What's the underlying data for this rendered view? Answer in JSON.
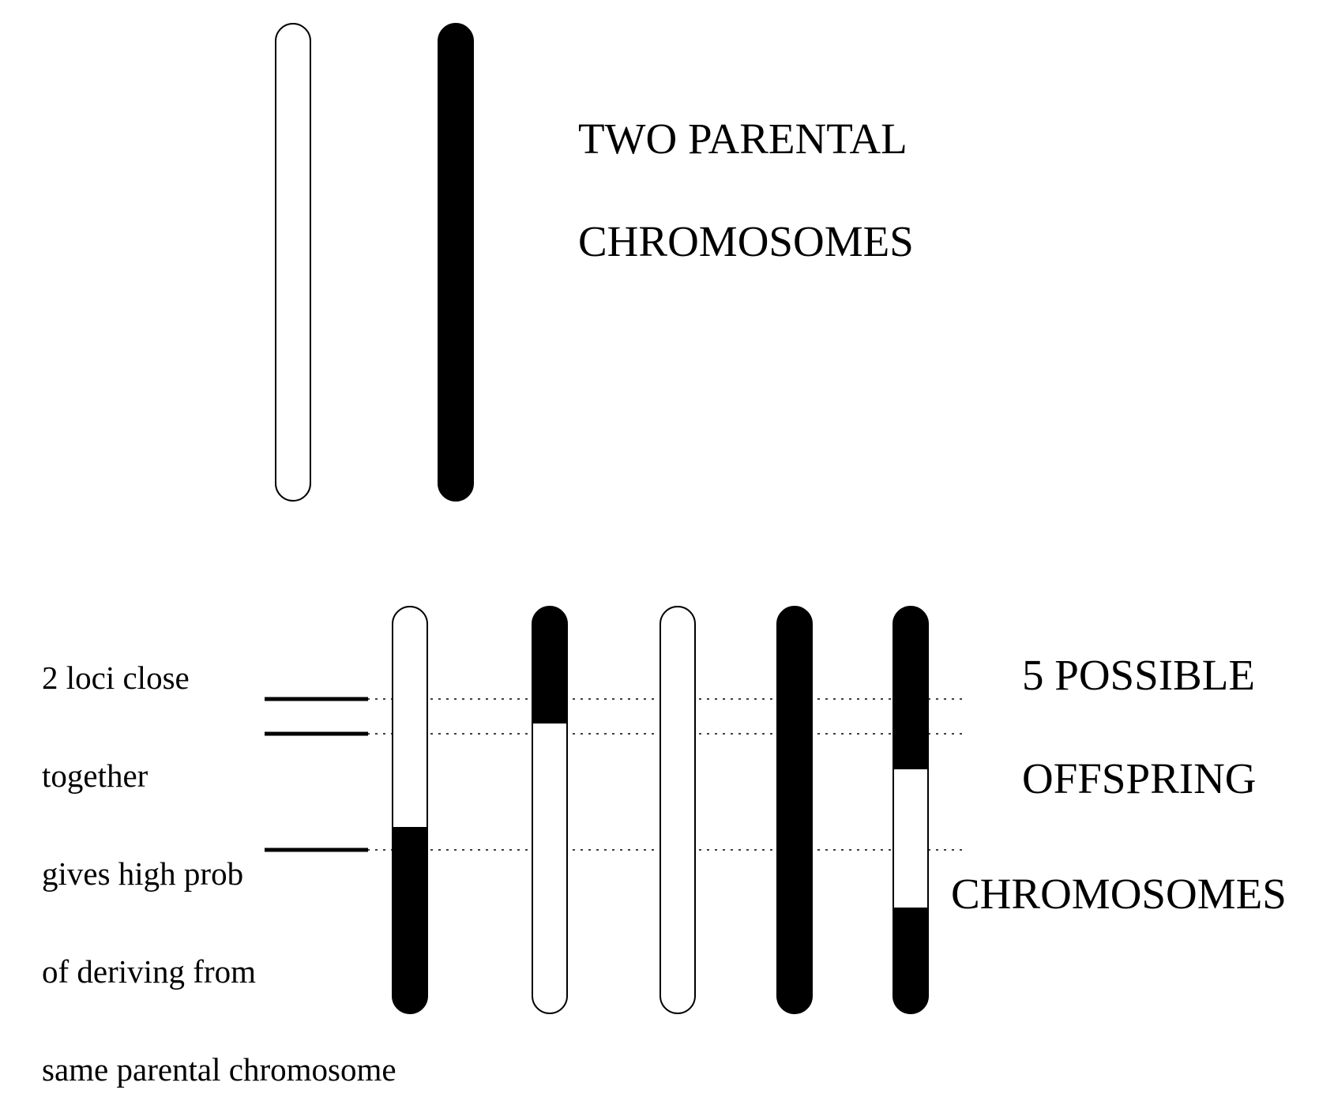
{
  "parents": {
    "title_line1": "TWO PARENTAL",
    "title_line2": "CHROMOSOMES",
    "chromosomes": [
      {
        "name": "parent-chromosome-white",
        "segments": [
          {
            "from": 0,
            "to": 1,
            "color": "#ffffff"
          }
        ]
      },
      {
        "name": "parent-chromosome-black",
        "segments": [
          {
            "from": 0,
            "to": 1,
            "color": "#000000"
          }
        ]
      }
    ]
  },
  "offspring": {
    "title_line1": "5 POSSIBLE",
    "title_line2": "OFFSPRING",
    "title_line3": "CHROMOSOMES",
    "chromosomes": [
      {
        "name": "offspring-chromosome-1",
        "segments": [
          {
            "from": 0,
            "to": 0.54,
            "color": "#ffffff"
          },
          {
            "from": 0.54,
            "to": 1,
            "color": "#000000"
          }
        ]
      },
      {
        "name": "offspring-chromosome-2",
        "segments": [
          {
            "from": 0,
            "to": 0.29,
            "color": "#000000"
          },
          {
            "from": 0.29,
            "to": 1,
            "color": "#ffffff"
          }
        ]
      },
      {
        "name": "offspring-chromosome-3",
        "segments": [
          {
            "from": 0,
            "to": 1,
            "color": "#ffffff"
          }
        ]
      },
      {
        "name": "offspring-chromosome-4",
        "segments": [
          {
            "from": 0,
            "to": 1,
            "color": "#000000"
          }
        ]
      },
      {
        "name": "offspring-chromosome-5",
        "segments": [
          {
            "from": 0,
            "to": 0.4,
            "color": "#000000"
          },
          {
            "from": 0.4,
            "to": 0.74,
            "color": "#ffffff"
          },
          {
            "from": 0.74,
            "to": 1,
            "color": "#000000"
          }
        ]
      }
    ]
  },
  "loci": {
    "count": 3,
    "note_lines": [
      "2 loci  close",
      "together",
      "gives high prob",
      "of deriving from",
      "same parental chromosome"
    ]
  },
  "colors": {
    "ink": "#000000",
    "paper": "#ffffff"
  }
}
